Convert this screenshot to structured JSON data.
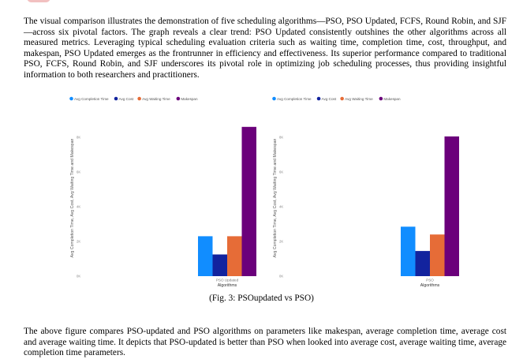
{
  "text": {
    "p1": "The visual comparison illustrates the demonstration of five scheduling algorithms—PSO, PSO Updated, FCFS, Round Robin, and SJF—across six pivotal factors. The graph reveals a clear trend: PSO Updated consistently outshines the other algorithms across all measured metrics. Leveraging typical scheduling evaluation criteria such as waiting time, completion time, cost, throughput, and makespan, PSO Updated emerges as the frontrunner in efficiency and effectiveness. Its superior performance compared to traditional PSO, FCFS, Round Robin, and SJF underscores its pivotal role in optimizing job scheduling processes, thus providing insightful information to both researchers and practitioners.",
    "caption": "(Fig. 3: PSOupdated vs PSO)",
    "p2": "The above figure compares PSO-updated and PSO algorithms on parameters like makespan, average completion time, average cost and average waiting time. It depicts that PSO-updated is better than PSO when looked into average cost, average waiting time, average completion time parameters."
  },
  "chart_data": [
    {
      "type": "bar",
      "categories": [
        "PSO Updated"
      ],
      "series": [
        {
          "name": "Avg Completion Time",
          "values": [
            2300
          ],
          "color": "#118dff"
        },
        {
          "name": "Avg Cost",
          "values": [
            1250
          ],
          "color": "#12239e"
        },
        {
          "name": "Avg Waiting Time",
          "values": [
            2300
          ],
          "color": "#e66c37"
        },
        {
          "name": "Makespan",
          "values": [
            8600
          ],
          "color": "#6b007b"
        }
      ],
      "ylabel": "Avg Completion Time, Avg Cost, Avg Waiting Time and Makespan",
      "xlabel": "Algorithms",
      "yticks": [
        "0K",
        "2K",
        "4K",
        "6K",
        "8K"
      ],
      "ylim": [
        0,
        9000
      ],
      "legend": "top-left"
    },
    {
      "type": "bar",
      "categories": [
        "PSO"
      ],
      "series": [
        {
          "name": "Avg Completion Time",
          "values": [
            2850
          ],
          "color": "#118dff"
        },
        {
          "name": "Avg Cost",
          "values": [
            1450
          ],
          "color": "#12239e"
        },
        {
          "name": "Avg Waiting Time",
          "values": [
            2400
          ],
          "color": "#e66c37"
        },
        {
          "name": "Makespan",
          "values": [
            8050
          ],
          "color": "#6b007b"
        }
      ],
      "ylabel": "Avg Completion Time, Avg Cost, Avg Waiting Time and Makespan",
      "xlabel": "Algorithms",
      "yticks": [
        "0K",
        "2K",
        "4K",
        "6K",
        "8K"
      ],
      "ylim": [
        0,
        9000
      ],
      "legend": "top-left"
    }
  ]
}
